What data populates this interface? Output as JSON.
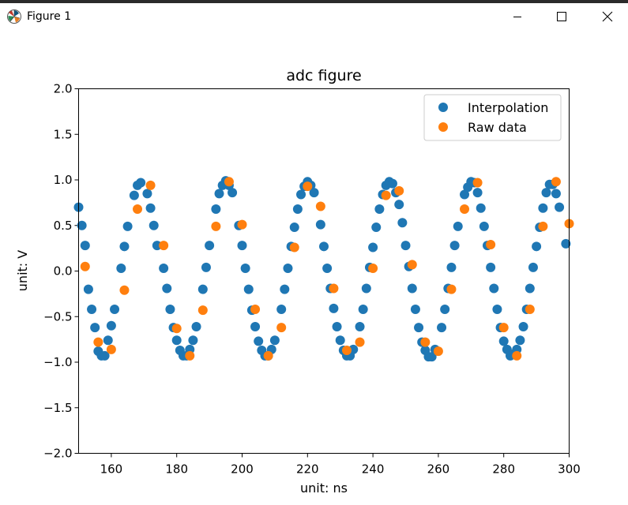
{
  "window": {
    "title": "Figure 1",
    "buttons": [
      "minimize",
      "maximize",
      "close"
    ]
  },
  "chart_data": {
    "type": "scatter",
    "title": "adc figure",
    "xlabel": "unit: ns",
    "ylabel": "unit: V",
    "xlim": [
      150,
      300
    ],
    "ylim": [
      -2.0,
      2.0
    ],
    "xticks": [
      160,
      180,
      200,
      220,
      240,
      260,
      280,
      300
    ],
    "yticks": [
      -2.0,
      -1.5,
      -1.0,
      -0.5,
      0.0,
      0.5,
      1.0,
      1.5,
      2.0
    ],
    "ytick_labels": [
      "−2.0",
      "−1.5",
      "−1.0",
      "−0.5",
      "0.0",
      "0.5",
      "1.0",
      "1.5",
      "2.0"
    ],
    "grid": false,
    "legend": "top-right",
    "series": [
      {
        "name": "Interpolation",
        "color": "#1f77b4",
        "x_start": 150,
        "x_step": 1,
        "values": [
          0.7,
          0.5,
          0.28,
          -0.2,
          -0.42,
          -0.62,
          -0.88,
          -0.93,
          -0.93,
          -0.76,
          -0.6,
          -0.42,
          0.03,
          0.27,
          0.49,
          0.83,
          0.94,
          0.97,
          0.85,
          0.69,
          0.5,
          0.28,
          0.03,
          -0.19,
          -0.42,
          -0.62,
          -0.76,
          -0.87,
          -0.93,
          -0.93,
          -0.86,
          -0.76,
          -0.61,
          -0.2,
          0.04,
          0.28,
          0.68,
          0.85,
          0.94,
          0.99,
          0.94,
          0.86,
          0.5,
          0.28,
          0.03,
          -0.2,
          -0.43,
          -0.61,
          -0.77,
          -0.87,
          -0.93,
          -0.93,
          -0.86,
          -0.76,
          -0.42,
          -0.2,
          0.03,
          0.27,
          0.48,
          0.68,
          0.84,
          0.93,
          0.98,
          0.94,
          0.86,
          0.51,
          0.27,
          0.03,
          -0.19,
          -0.41,
          -0.61,
          -0.76,
          -0.87,
          -0.93,
          -0.93,
          -0.86,
          -0.61,
          -0.42,
          -0.19,
          0.04,
          0.26,
          0.48,
          0.68,
          0.84,
          0.94,
          0.98,
          0.96,
          0.86,
          0.73,
          0.53,
          0.28,
          0.05,
          -0.19,
          -0.42,
          -0.62,
          -0.78,
          -0.87,
          -0.94,
          -0.94,
          -0.86,
          -0.62,
          -0.42,
          -0.19,
          0.04,
          0.28,
          0.49,
          0.84,
          0.92,
          0.98,
          0.97,
          0.86,
          0.69,
          0.49,
          0.28,
          0.04,
          -0.19,
          -0.42,
          -0.62,
          -0.77,
          -0.86,
          -0.93,
          -0.91,
          -0.86,
          -0.76,
          -0.61,
          -0.42,
          -0.19,
          0.04,
          0.27,
          0.48,
          0.69,
          0.86,
          0.95,
          0.95,
          0.85,
          0.7,
          0.3
        ],
        "values_at": [
          150,
          151,
          152,
          153,
          154,
          155,
          156,
          157,
          158,
          159,
          160,
          161,
          163,
          164,
          165,
          167,
          168,
          169,
          171,
          172,
          173,
          174,
          176,
          177,
          178,
          179,
          180,
          181,
          182,
          183,
          184,
          185,
          186,
          188,
          189,
          190,
          192,
          193,
          194,
          195,
          196,
          197,
          199,
          200,
          201,
          202,
          203,
          204,
          205,
          206,
          207,
          208,
          209,
          210,
          212,
          213,
          214,
          215,
          216,
          217,
          218,
          219,
          220,
          221,
          222,
          224,
          225,
          226,
          227,
          228,
          229,
          230,
          231,
          232,
          233,
          234,
          236,
          237,
          238,
          239,
          240,
          241,
          242,
          243,
          244,
          245,
          246,
          247,
          248,
          249,
          250,
          251,
          252,
          253,
          254,
          255,
          256,
          257,
          258,
          259,
          261,
          262,
          263,
          264,
          265,
          266,
          268,
          269,
          270,
          271,
          272,
          273,
          274,
          275,
          276,
          277,
          278,
          279,
          280,
          281,
          282,
          283,
          284,
          285,
          286,
          287,
          288,
          289,
          290,
          291,
          292,
          293,
          294,
          295,
          296,
          297,
          299
        ]
      },
      {
        "name": "Raw data",
        "color": "#ff7f0e",
        "x": [
          152,
          156,
          160,
          164,
          168,
          172,
          176,
          180,
          184,
          188,
          192,
          196,
          200,
          204,
          208,
          212,
          216,
          220,
          224,
          228,
          232,
          236,
          240,
          244,
          248,
          252,
          256,
          260,
          264,
          268,
          272,
          276,
          280,
          284,
          288,
          292,
          296,
          300
        ],
        "y": [
          0.05,
          -0.78,
          -0.86,
          -0.21,
          0.68,
          0.94,
          0.28,
          -0.63,
          -0.93,
          -0.43,
          0.49,
          0.98,
          0.51,
          -0.42,
          -0.93,
          -0.62,
          0.26,
          0.93,
          0.71,
          -0.19,
          -0.87,
          -0.78,
          0.03,
          0.83,
          0.88,
          0.07,
          -0.78,
          -0.88,
          -0.2,
          0.68,
          0.97,
          0.29,
          -0.62,
          -0.93,
          -0.42,
          0.49,
          0.98,
          0.52
        ]
      }
    ]
  }
}
